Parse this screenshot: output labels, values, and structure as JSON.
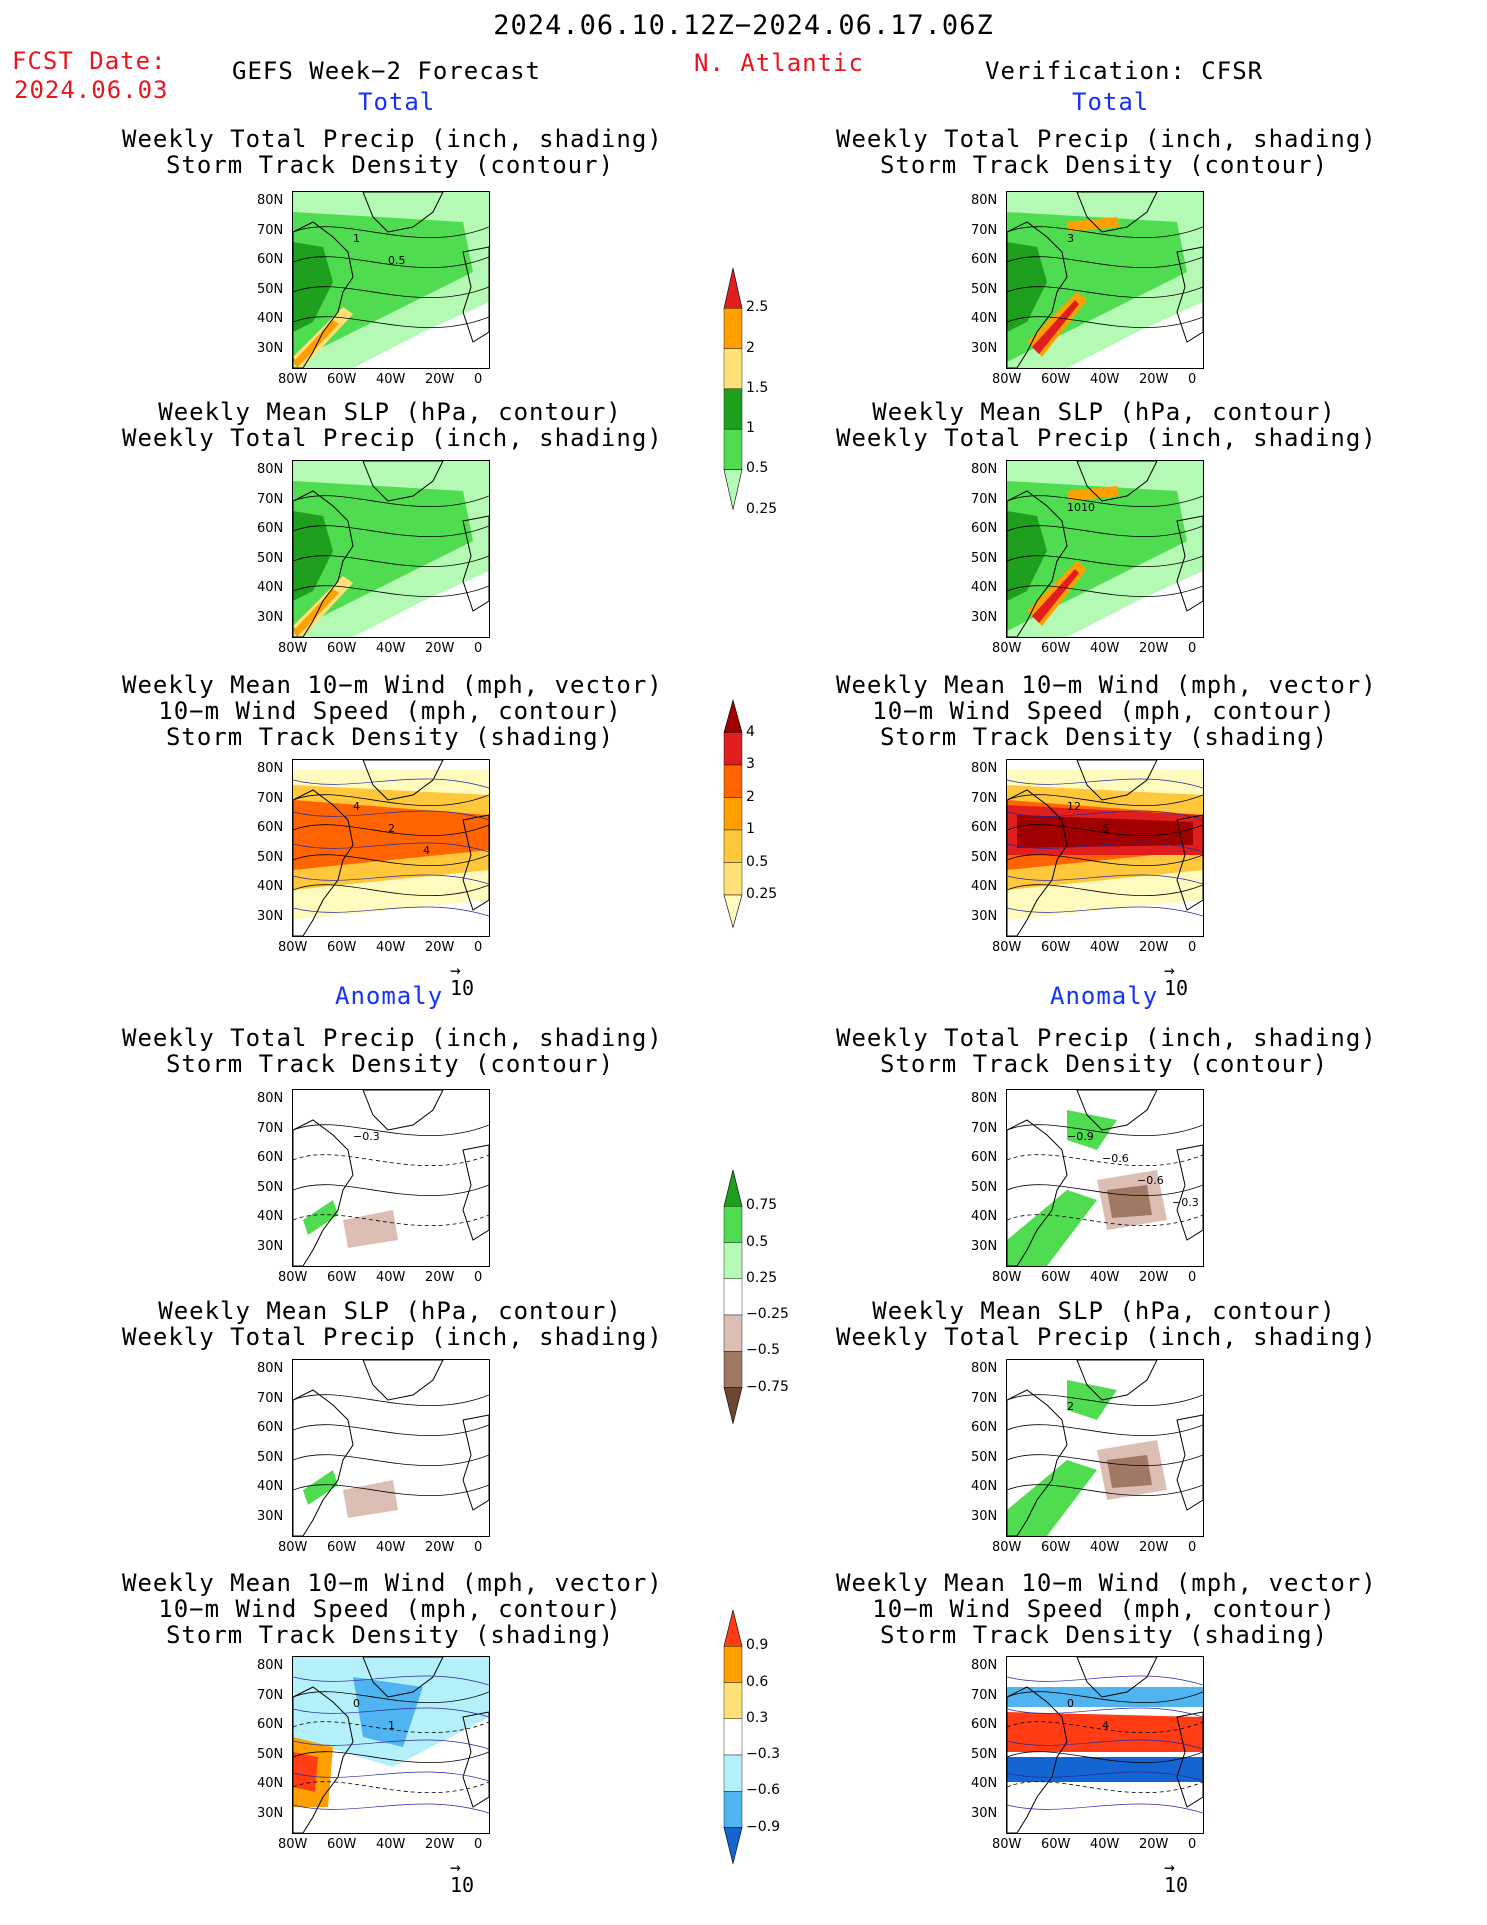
{
  "header": {
    "period": "2024.06.10.12Z−2024.06.17.06Z",
    "fcst_label": "FCST Date:",
    "fcst_date": "2024.06.03",
    "left_title": "GEFS Week−2 Forecast",
    "region": "N. Atlantic",
    "right_title": "Verification: CFSR",
    "total": "Total",
    "anomaly": "Anomaly"
  },
  "panel_titles": {
    "precip_track": [
      "Weekly Total Precip (inch, shading)",
      "Storm Track Density (contour)"
    ],
    "slp_precip": [
      "Weekly Mean SLP (hPa, contour)",
      "Weekly Total Precip (inch, shading)"
    ],
    "wind": [
      "Weekly Mean 10−m Wind (mph, vector)",
      "10−m Wind Speed (mph, contour)",
      "Storm Track Density (shading)"
    ]
  },
  "axes": {
    "lat": [
      "80N",
      "70N",
      "60N",
      "50N",
      "40N",
      "30N"
    ],
    "lon": [
      "80W",
      "60W",
      "40W",
      "20W",
      "0"
    ]
  },
  "vector_ref": "10",
  "contour_labels": {
    "fc_precip_track": [
      "1",
      "0.5"
    ],
    "ob_precip_track": [
      "3"
    ],
    "ob_slp": [
      "1010"
    ],
    "fc_wind": [
      "4",
      "2",
      "4"
    ],
    "ob_wind": [
      "12",
      "6"
    ],
    "fc_anom_precip": [
      "−0.3"
    ],
    "ob_anom_precip": [
      "−0.9",
      "−0.6",
      "−0.6",
      "−0.3"
    ],
    "ob_anom_slp": [
      "2"
    ],
    "fc_anom_wind": [
      "0",
      "1"
    ],
    "ob_anom_wind": [
      "0",
      "4"
    ]
  },
  "colorbars": {
    "precip": {
      "labels": [
        "2.5",
        "2",
        "1.5",
        "1",
        "0.5",
        "0.25"
      ],
      "colors": [
        "#e11e1e",
        "#ffa000",
        "#ffe178",
        "#1ea01e",
        "#50dc50",
        "#b4fab4"
      ]
    },
    "track": {
      "labels": [
        "4",
        "3",
        "2",
        "1",
        "0.5",
        "0.25"
      ],
      "colors": [
        "#a00000",
        "#e11e1e",
        "#ff6400",
        "#ffa000",
        "#ffc83c",
        "#ffe178",
        "#fffabe"
      ]
    },
    "precip_anom": {
      "labels": [
        "0.75",
        "0.5",
        "0.25",
        "−0.25",
        "−0.5",
        "−0.75"
      ],
      "colors": [
        "#1ea01e",
        "#50dc50",
        "#b4fab4",
        "#ffffff",
        "#dcbeb4",
        "#a07864",
        "#6e4632"
      ]
    },
    "track_anom": {
      "labels": [
        "0.9",
        "0.6",
        "0.3",
        "−0.3",
        "−0.6",
        "−0.9"
      ],
      "colors": [
        "#ff3c14",
        "#ffa000",
        "#ffe178",
        "#ffffff",
        "#b4f0fa",
        "#50b4f0",
        "#1464d2"
      ]
    }
  }
}
